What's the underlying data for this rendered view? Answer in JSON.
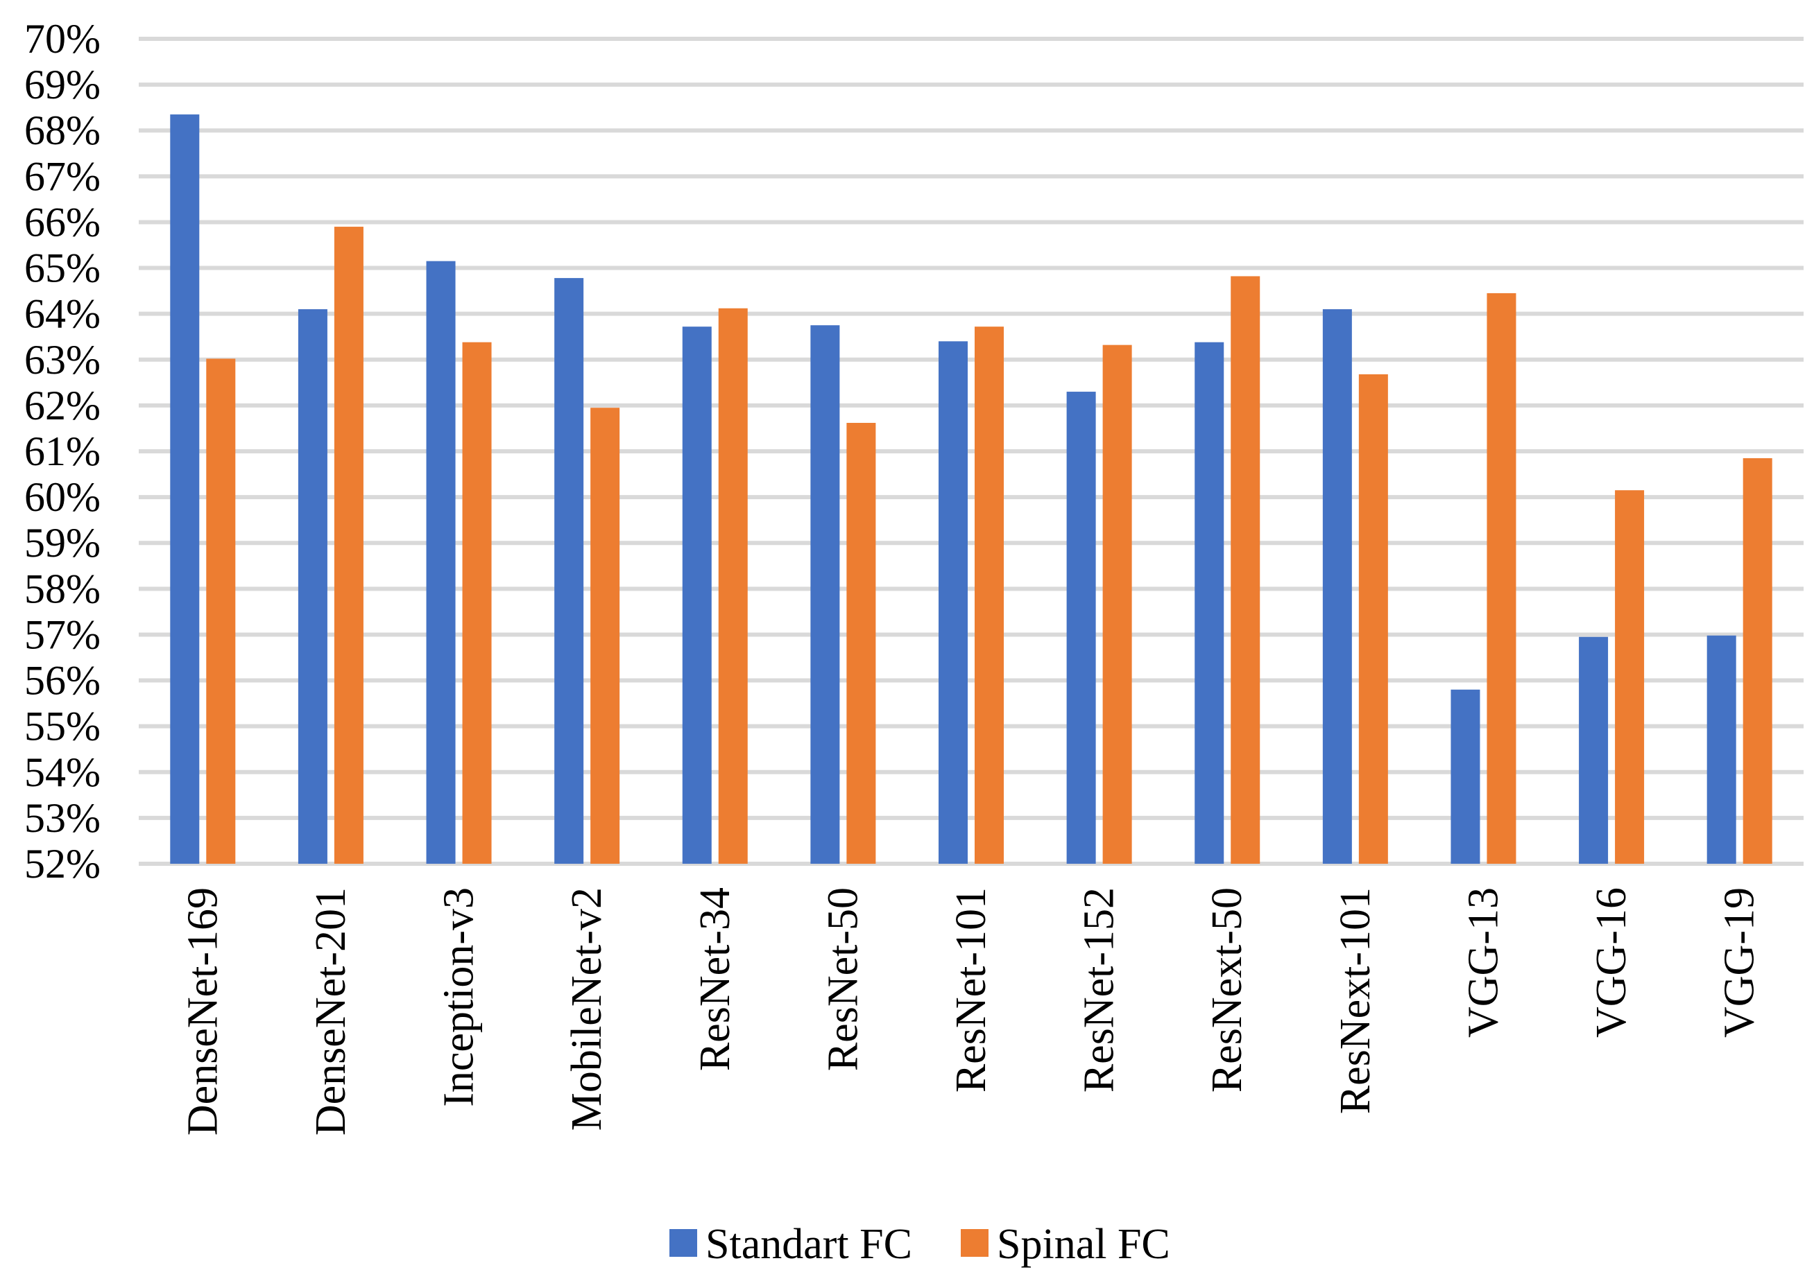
{
  "chart_data": {
    "type": "bar",
    "title": "",
    "xlabel": "",
    "ylabel": "",
    "ylim": [
      52,
      70
    ],
    "y_tick_step": 1,
    "y_tick_suffix": "%",
    "grid": true,
    "legend_position": "bottom-center",
    "categories": [
      "DenseNet-169",
      "DenseNet-201",
      "Inception-v3",
      "MobileNet-v2",
      "ResNet-34",
      "ResNet-50",
      "ResNet-101",
      "ResNet-152",
      "ResNext-50",
      "ResNext-101",
      "VGG-13",
      "VGG-16",
      "VGG-19"
    ],
    "series": [
      {
        "name": "Standart FC",
        "color": "#4472C4",
        "values": [
          68.35,
          64.1,
          65.15,
          64.78,
          63.72,
          63.75,
          63.4,
          62.3,
          63.38,
          64.1,
          55.8,
          56.95,
          56.98
        ]
      },
      {
        "name": "Spinal FC",
        "color": "#ED7D31",
        "values": [
          63.02,
          65.9,
          63.38,
          61.95,
          64.12,
          61.62,
          63.72,
          63.32,
          64.82,
          62.68,
          64.45,
          60.15,
          60.85
        ]
      }
    ],
    "gridline_color": "#D9D9D9"
  }
}
